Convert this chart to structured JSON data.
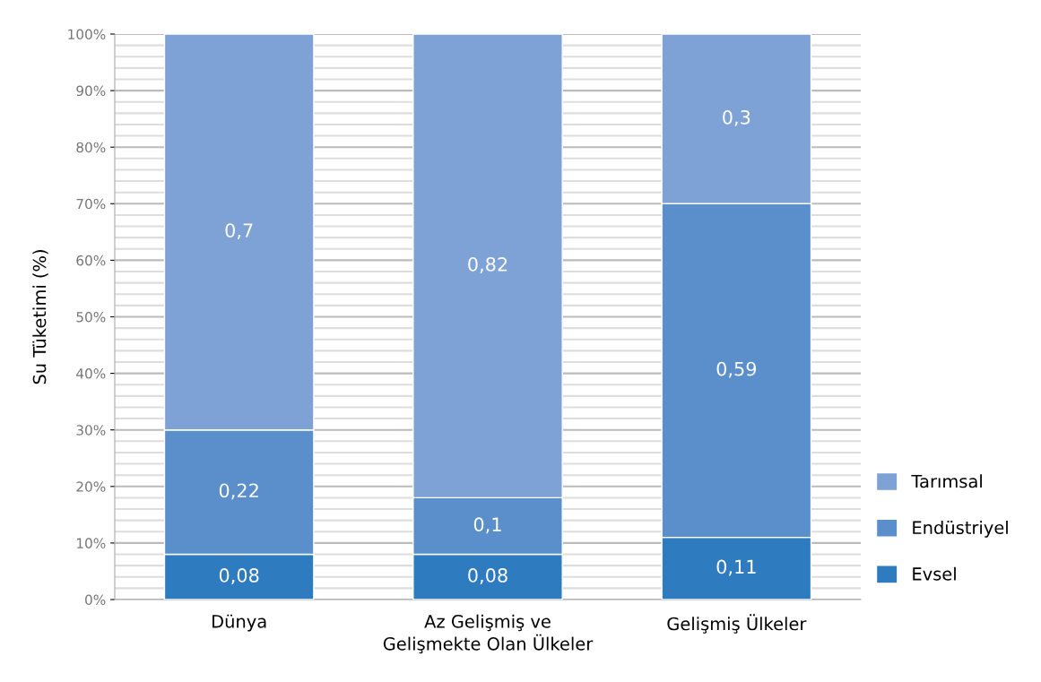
{
  "chart_data": {
    "type": "bar",
    "stacked": true,
    "ylabel": "Su Tüketimi (%)",
    "categories": [
      "Dünya",
      "Az Gelişmiş ve\nGelişmekte Olan Ülkeler",
      "Gelişmiş Ülkeler"
    ],
    "series": [
      {
        "name": "Evsel",
        "color": "#2e7bc0",
        "values": [
          0.08,
          0.08,
          0.11
        ],
        "value_labels": [
          "0,08",
          "0,08",
          "0,11"
        ]
      },
      {
        "name": "Endüstriyel",
        "color": "#5b8fcb",
        "values": [
          0.22,
          0.1,
          0.59
        ],
        "value_labels": [
          "0,22",
          "0,1",
          "0,59"
        ]
      },
      {
        "name": "Tarımsal",
        "color": "#7ea2d6",
        "values": [
          0.7,
          0.82,
          0.3
        ],
        "value_labels": [
          "0,7",
          "0,82",
          "0,3"
        ]
      }
    ],
    "ylim": [
      0,
      1
    ],
    "yticks": [
      {
        "value": 0,
        "label": "0%"
      },
      {
        "value": 0.1,
        "label": "10%"
      },
      {
        "value": 0.2,
        "label": "20%"
      },
      {
        "value": 0.3,
        "label": "30%"
      },
      {
        "value": 0.4,
        "label": "40%"
      },
      {
        "value": 0.5,
        "label": "50%"
      },
      {
        "value": 0.6,
        "label": "60%"
      },
      {
        "value": 0.7,
        "label": "70%"
      },
      {
        "value": 0.8,
        "label": "80%"
      },
      {
        "value": 0.9,
        "label": "90%"
      },
      {
        "value": 1,
        "label": "100%"
      }
    ],
    "grid": "y",
    "legend": "right"
  }
}
